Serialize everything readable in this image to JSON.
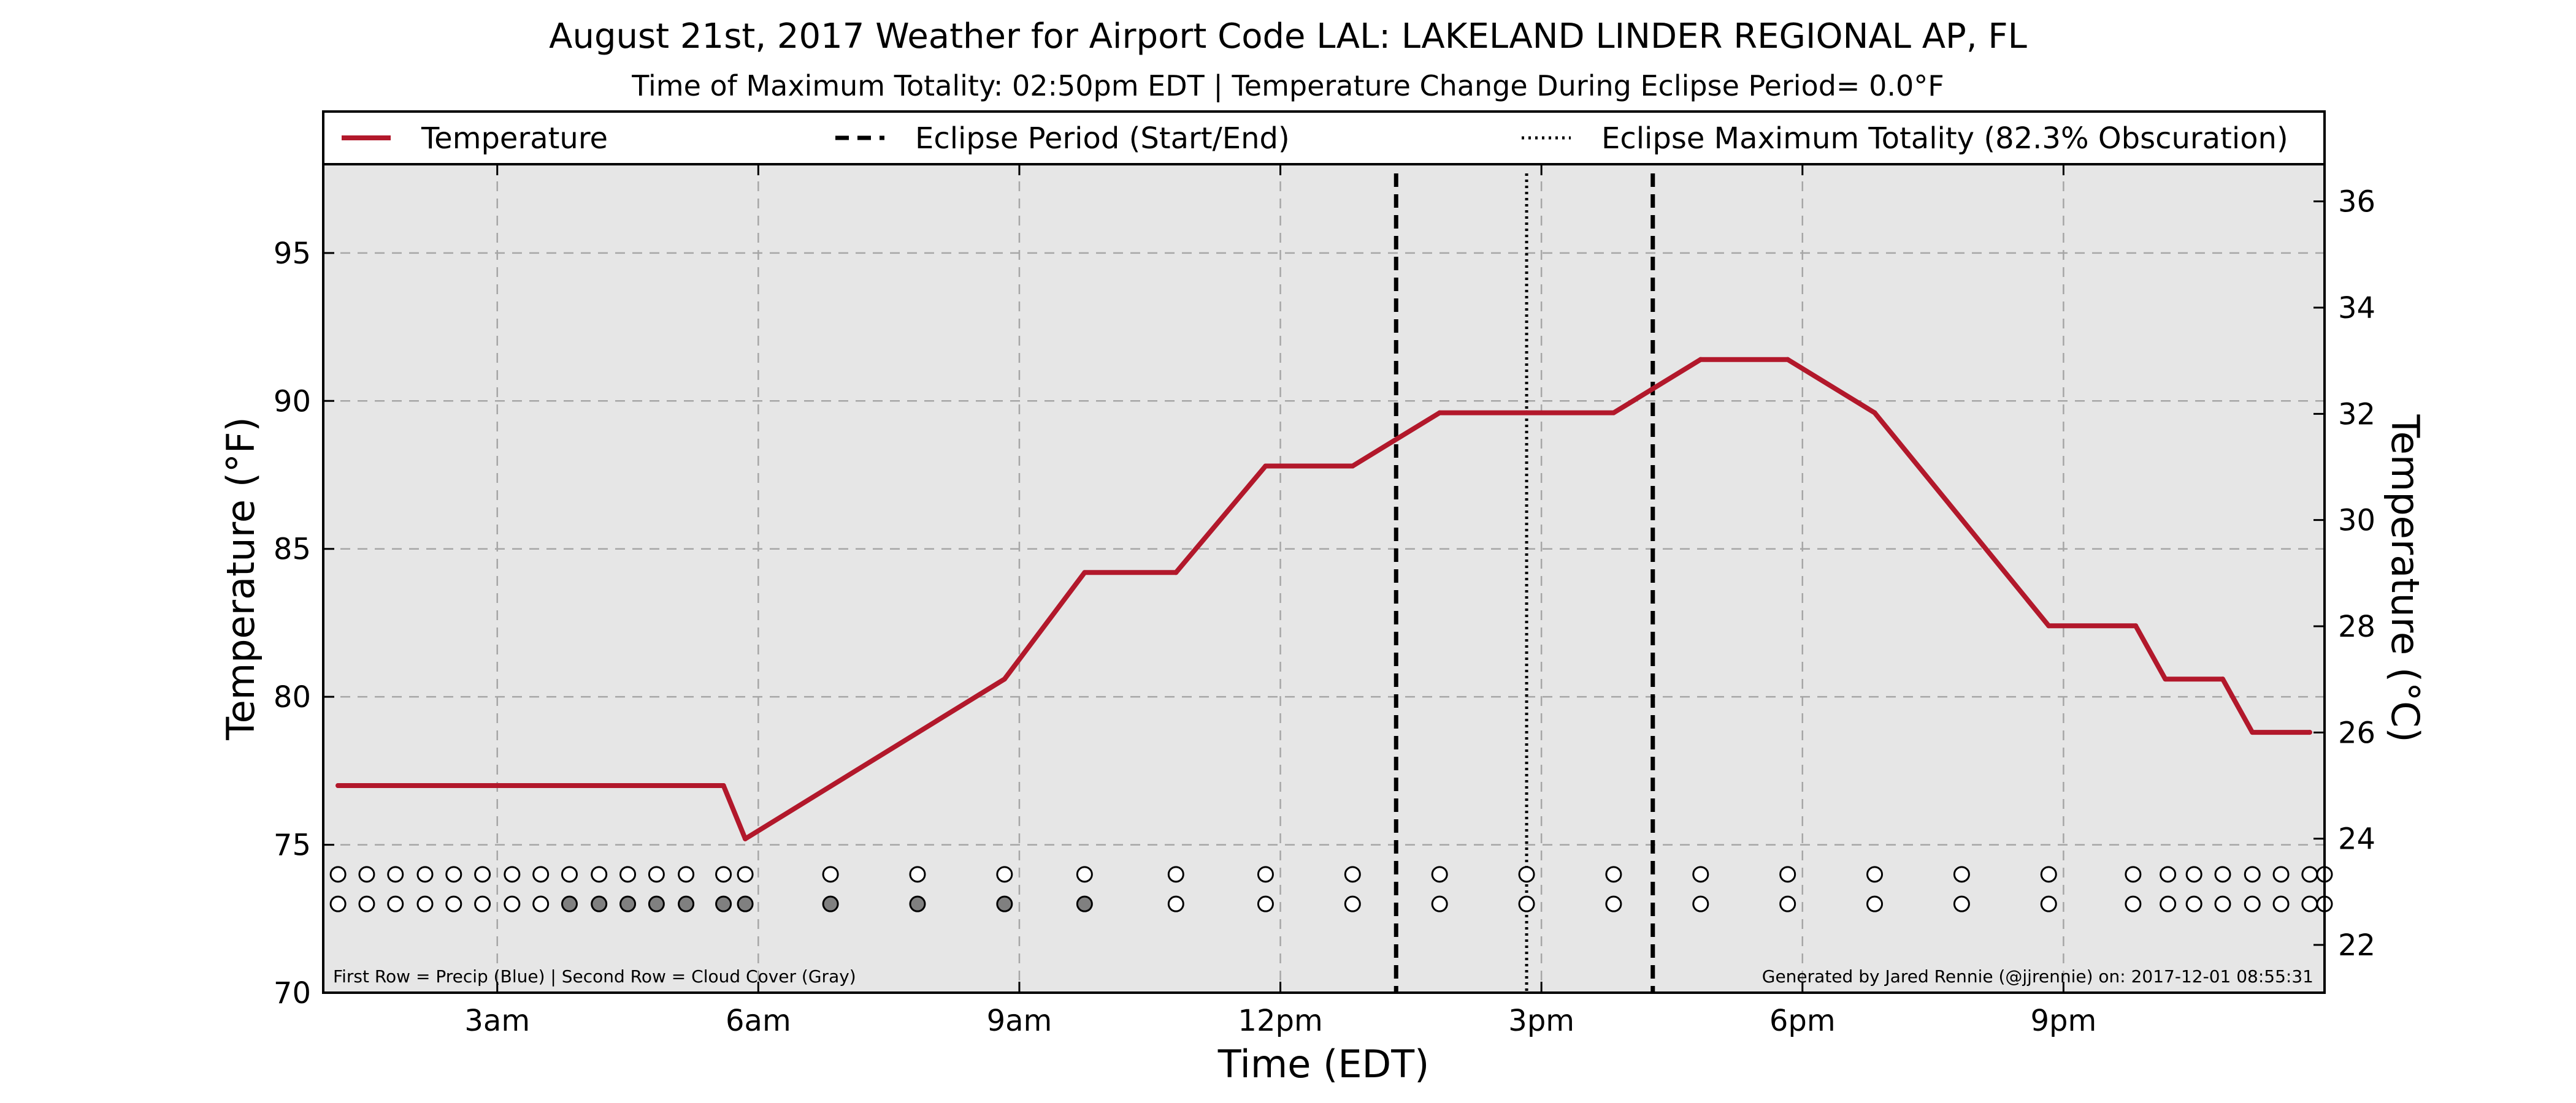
{
  "chart_data": {
    "type": "line",
    "title": "August 21st, 2017 Weather for Airport Code LAL: LAKELAND LINDER REGIONAL AP, FL",
    "subtitle": "Time of Maximum Totality: 02:50pm EDT | Temperature Change During Eclipse Period= 0.0°F",
    "xlabel": "Time (EDT)",
    "ylabel": "Temperature (°F)",
    "ylabel_right": "Temperature (°C)",
    "xlim": [
      1.0,
      24.0
    ],
    "ylim": [
      70,
      98
    ],
    "ylim_right": [
      21.1,
      36.7
    ],
    "grid": true,
    "x_ticks": [
      {
        "value": 3,
        "label": "3am"
      },
      {
        "value": 6,
        "label": "6am"
      },
      {
        "value": 9,
        "label": "9am"
      },
      {
        "value": 12,
        "label": "12pm"
      },
      {
        "value": 15,
        "label": "3pm"
      },
      {
        "value": 18,
        "label": "6pm"
      },
      {
        "value": 21,
        "label": "9pm"
      }
    ],
    "y_ticks": [
      70,
      75,
      80,
      85,
      90,
      95
    ],
    "y_ticks_right": [
      22,
      24,
      26,
      28,
      30,
      32,
      34,
      36
    ],
    "legend": {
      "placement": "top",
      "entries": [
        {
          "label": "Temperature",
          "style": "solid",
          "color": "#b2182b"
        },
        {
          "label": "Eclipse Period (Start/End)",
          "style": "dashed",
          "color": "#000000"
        },
        {
          "label": "Eclipse Maximum Totality (82.3% Obscuration)",
          "style": "dotted",
          "color": "#000000"
        }
      ]
    },
    "series": [
      {
        "name": "Temperature",
        "color": "#b2182b",
        "x": [
          1.17,
          5.6,
          5.85,
          8.83,
          9.75,
          10.8,
          11.83,
          12.83,
          13.83,
          14.83,
          15.83,
          16.83,
          17.83,
          18.83,
          19.83,
          20.83,
          21.83,
          22.17,
          22.83,
          23.17,
          23.83
        ],
        "y": [
          77.0,
          77.0,
          75.2,
          80.6,
          84.2,
          84.2,
          87.8,
          87.8,
          89.6,
          89.6,
          89.6,
          91.4,
          91.4,
          89.6,
          86.0,
          82.4,
          82.4,
          80.6,
          80.6,
          78.8,
          78.8
        ]
      }
    ],
    "eclipse_start": 13.33,
    "eclipse_max": 14.83,
    "eclipse_end": 16.28,
    "observation_times": [
      1.17,
      1.5,
      1.83,
      2.17,
      2.5,
      2.83,
      3.17,
      3.5,
      3.83,
      4.17,
      4.5,
      4.83,
      5.17,
      5.6,
      5.85,
      6.83,
      7.83,
      8.83,
      9.75,
      10.8,
      11.83,
      12.83,
      13.83,
      14.83,
      15.83,
      16.83,
      17.83,
      18.83,
      19.83,
      20.83,
      21.8,
      22.2,
      22.5,
      22.83,
      23.17,
      23.5,
      23.83,
      24.0
    ],
    "cloud_cover_gray": [
      8,
      9,
      10,
      11,
      12,
      13,
      14,
      15,
      16,
      17,
      18
    ],
    "marker_row_y": {
      "precip": 74.0,
      "cloud": 73.0
    },
    "footnote_left": "First Row = Precip (Blue) | Second Row = Cloud Cover (Gray)",
    "footnote_right": "Generated by Jared Rennie (@jjrennie) on: 2017-12-01 08:55:31"
  }
}
